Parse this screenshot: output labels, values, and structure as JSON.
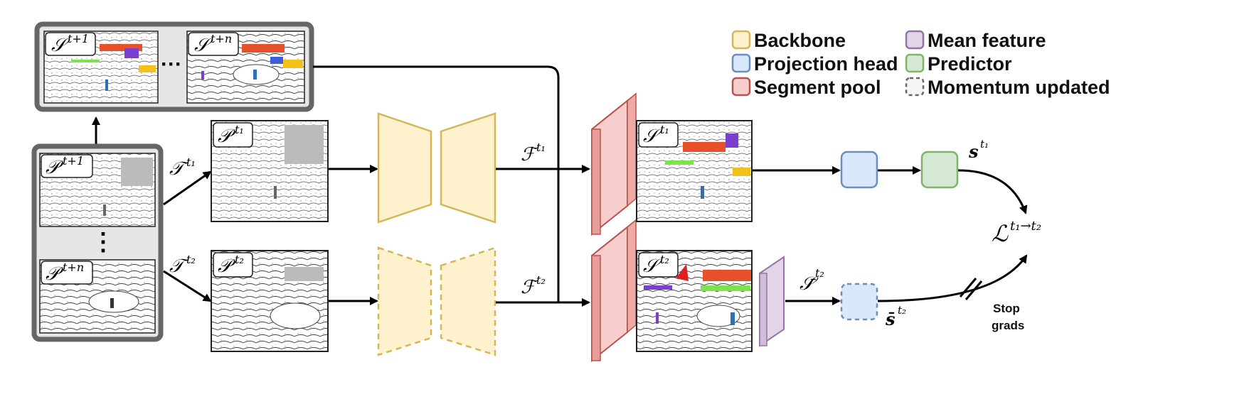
{
  "legend": {
    "backbone": "Backbone",
    "projection_head": "Projection head",
    "segment_pool": "Segment pool",
    "mean_feature": "Mean feature",
    "predictor": "Predictor",
    "momentum_updated": "Momentum updated"
  },
  "labels": {
    "S_future_first": "𝒮",
    "S_future_first_sup": "t+1",
    "S_future_last": "𝒮",
    "S_future_last_sup": "t+n",
    "P_future_first": "𝒫",
    "P_future_first_sup": "t+1",
    "P_future_last": "𝒫",
    "P_future_last_sup": "t+n",
    "P_t1": "𝒫",
    "P_t1_sup": "t₁",
    "P_t2": "𝒫",
    "P_t2_sup": "t₂",
    "T_t1": "𝒯",
    "T_t1_sup": "t₁",
    "T_t2": "𝒯",
    "T_t2_sup": "t₂",
    "F_t1": "ℱ",
    "F_t1_sup": "t₁",
    "F_t2": "ℱ",
    "F_t2_sup": "t₂",
    "S_t1": "𝒮",
    "S_t1_sup": "t₁",
    "S_t2": "𝒮",
    "S_t2_sup": "t₂",
    "Sbar_t2": "𝒮̄",
    "Sbar_t2_sup": "t₂",
    "s_t1": "s",
    "s_t1_sup": "t₁",
    "sbar_t2": "s̄",
    "sbar_t2_sup": "t₂",
    "loss": "ℒ",
    "loss_sup": "t₁→t₂",
    "ellipsis_h": "···",
    "ellipsis_v": "⋮",
    "stop_grads_1": "Stop",
    "stop_grads_2": "grads"
  },
  "colors": {
    "backbone_fill": "#FDF1CE",
    "backbone_stroke": "#D6B656",
    "projection_fill": "#DAE8FC",
    "projection_stroke": "#6C8EBF",
    "segment_fill": "#F8CECC",
    "segment_stroke": "#B85450",
    "mean_fill": "#E1D5E7",
    "mean_stroke": "#9673A6",
    "predictor_fill": "#D5E8D4",
    "predictor_stroke": "#82B366",
    "group_fill": "#E6E6E6",
    "group_stroke": "#666666"
  }
}
